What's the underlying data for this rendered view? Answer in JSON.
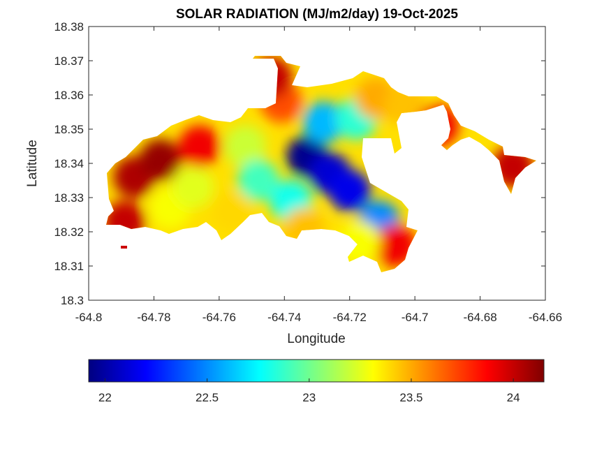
{
  "chart_data": {
    "type": "heatmap",
    "title": "SOLAR RADIATION (MJ/m2/day) 19-Oct-2025",
    "xlabel": "Longitude",
    "ylabel": "Latitude",
    "xlim": [
      -64.8,
      -64.66
    ],
    "ylim": [
      18.3,
      18.38
    ],
    "x_ticks": [
      "-64.8",
      "-64.78",
      "-64.76",
      "-64.74",
      "-64.72",
      "-64.7",
      "-64.68",
      "-64.66"
    ],
    "y_ticks": [
      "18.3",
      "18.31",
      "18.32",
      "18.33",
      "18.34",
      "18.35",
      "18.36",
      "18.37",
      "18.38"
    ],
    "colormap": "jet",
    "color_range": [
      21.92,
      24.15
    ],
    "colorbar_ticks": [
      "22",
      "22.5",
      "23",
      "23.5",
      "24"
    ],
    "grid": false,
    "sample_points": [
      {
        "lon": -64.786,
        "lat": 18.336,
        "value": 24.05
      },
      {
        "lon": -64.778,
        "lat": 18.341,
        "value": 24.1
      },
      {
        "lon": -64.766,
        "lat": 18.345,
        "value": 23.9
      },
      {
        "lon": -64.775,
        "lat": 18.327,
        "value": 23.3
      },
      {
        "lon": -64.768,
        "lat": 18.333,
        "value": 23.25
      },
      {
        "lon": -64.789,
        "lat": 18.323,
        "value": 24.0
      },
      {
        "lon": -64.752,
        "lat": 18.345,
        "value": 23.2
      },
      {
        "lon": -64.748,
        "lat": 18.335,
        "value": 22.9
      },
      {
        "lon": -64.756,
        "lat": 18.326,
        "value": 23.4
      },
      {
        "lon": -64.733,
        "lat": 18.342,
        "value": 21.95
      },
      {
        "lon": -64.726,
        "lat": 18.337,
        "value": 22.1
      },
      {
        "lon": -64.72,
        "lat": 18.332,
        "value": 22.15
      },
      {
        "lon": -64.738,
        "lat": 18.329,
        "value": 22.8
      },
      {
        "lon": -64.728,
        "lat": 18.352,
        "value": 22.6
      },
      {
        "lon": -64.718,
        "lat": 18.353,
        "value": 22.85
      },
      {
        "lon": -64.741,
        "lat": 18.358,
        "value": 23.7
      },
      {
        "lon": -64.744,
        "lat": 18.365,
        "value": 24.0
      },
      {
        "lon": -64.712,
        "lat": 18.359,
        "value": 23.5
      },
      {
        "lon": -64.703,
        "lat": 18.357,
        "value": 23.45
      },
      {
        "lon": -64.711,
        "lat": 18.323,
        "value": 22.5
      },
      {
        "lon": -64.706,
        "lat": 18.316,
        "value": 23.9
      },
      {
        "lon": -64.717,
        "lat": 18.317,
        "value": 23.3
      },
      {
        "lon": -64.734,
        "lat": 18.321,
        "value": 23.45
      },
      {
        "lon": -64.693,
        "lat": 18.351,
        "value": 23.9
      },
      {
        "lon": -64.67,
        "lat": 18.339,
        "value": 24.0
      }
    ]
  }
}
